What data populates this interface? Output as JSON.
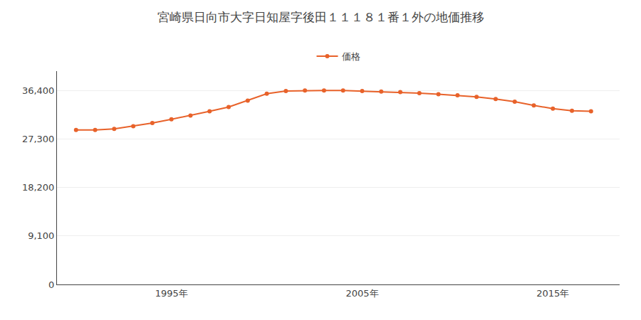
{
  "chart_data": {
    "type": "line",
    "title": "宮崎県日向市大字日知屋字後田１１１８１番１外の地価推移",
    "x": [
      1990,
      1991,
      1992,
      1993,
      1994,
      1995,
      1996,
      1997,
      1998,
      1999,
      2000,
      2001,
      2002,
      2003,
      2004,
      2005,
      2006,
      2007,
      2008,
      2009,
      2010,
      2011,
      2012,
      2013,
      2014,
      2015,
      2016,
      2017
    ],
    "series": [
      {
        "name": "価格",
        "color": "#e8622a",
        "values": [
          29000,
          29000,
          29200,
          29700,
          30300,
          31000,
          31700,
          32500,
          33300,
          34500,
          35800,
          36300,
          36400,
          36400,
          36400,
          36300,
          36200,
          36100,
          35900,
          35700,
          35500,
          35200,
          34800,
          34300,
          33600,
          33000,
          32600,
          32500
        ]
      }
    ],
    "xlim": [
      1989.0,
      2018.5
    ],
    "xticks": [
      {
        "value": 1995,
        "label": "1995年"
      },
      {
        "value": 2005,
        "label": "2005年"
      },
      {
        "value": 2015,
        "label": "2015年"
      }
    ],
    "ylim": [
      0,
      40040
    ],
    "yticks": [
      0,
      {
        "value": 9100,
        "label": "9,100"
      },
      {
        "value": 18200,
        "label": "18,200"
      },
      {
        "value": 27300,
        "label": "27,300"
      },
      {
        "value": 36400,
        "label": "36,400"
      }
    ],
    "grid": "y",
    "marker": "circle",
    "legend": "upper center"
  }
}
